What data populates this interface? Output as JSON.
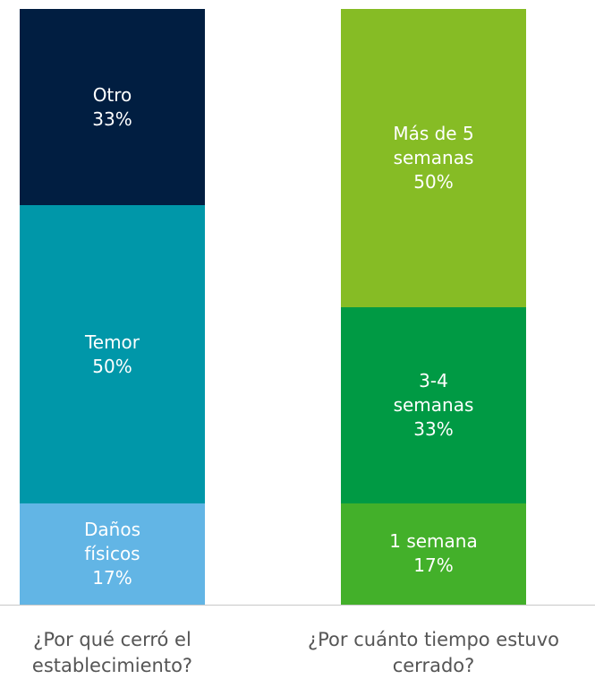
{
  "chart_data": [
    {
      "type": "bar",
      "stacked": true,
      "categories": [
        "¿Por qué cerró el establecimiento?"
      ],
      "ylim": [
        0,
        100
      ],
      "series": [
        {
          "name": "Daños físicos",
          "color": "#62b5e5",
          "values": [
            17
          ],
          "value_labels": [
            "17%"
          ]
        },
        {
          "name": "Temor",
          "color": "#0097a9",
          "values": [
            50
          ],
          "value_labels": [
            "50%"
          ]
        },
        {
          "name": "Otro",
          "color": "#011e41",
          "values": [
            33
          ],
          "value_labels": [
            "33%"
          ]
        }
      ]
    },
    {
      "type": "bar",
      "stacked": true,
      "categories": [
        "¿Por cuánto tiempo estuvo cerrado?"
      ],
      "ylim": [
        0,
        100
      ],
      "series": [
        {
          "name": "1 semana",
          "color": "#43b02a",
          "values": [
            17
          ],
          "value_labels": [
            "17%"
          ]
        },
        {
          "name": "3-4 semanas",
          "color": "#009a44",
          "values": [
            33
          ],
          "value_labels": [
            "33%"
          ]
        },
        {
          "name": "Más de 5 semanas",
          "color": "#86bc25",
          "values": [
            50
          ],
          "value_labels": [
            "50%"
          ]
        }
      ]
    }
  ]
}
